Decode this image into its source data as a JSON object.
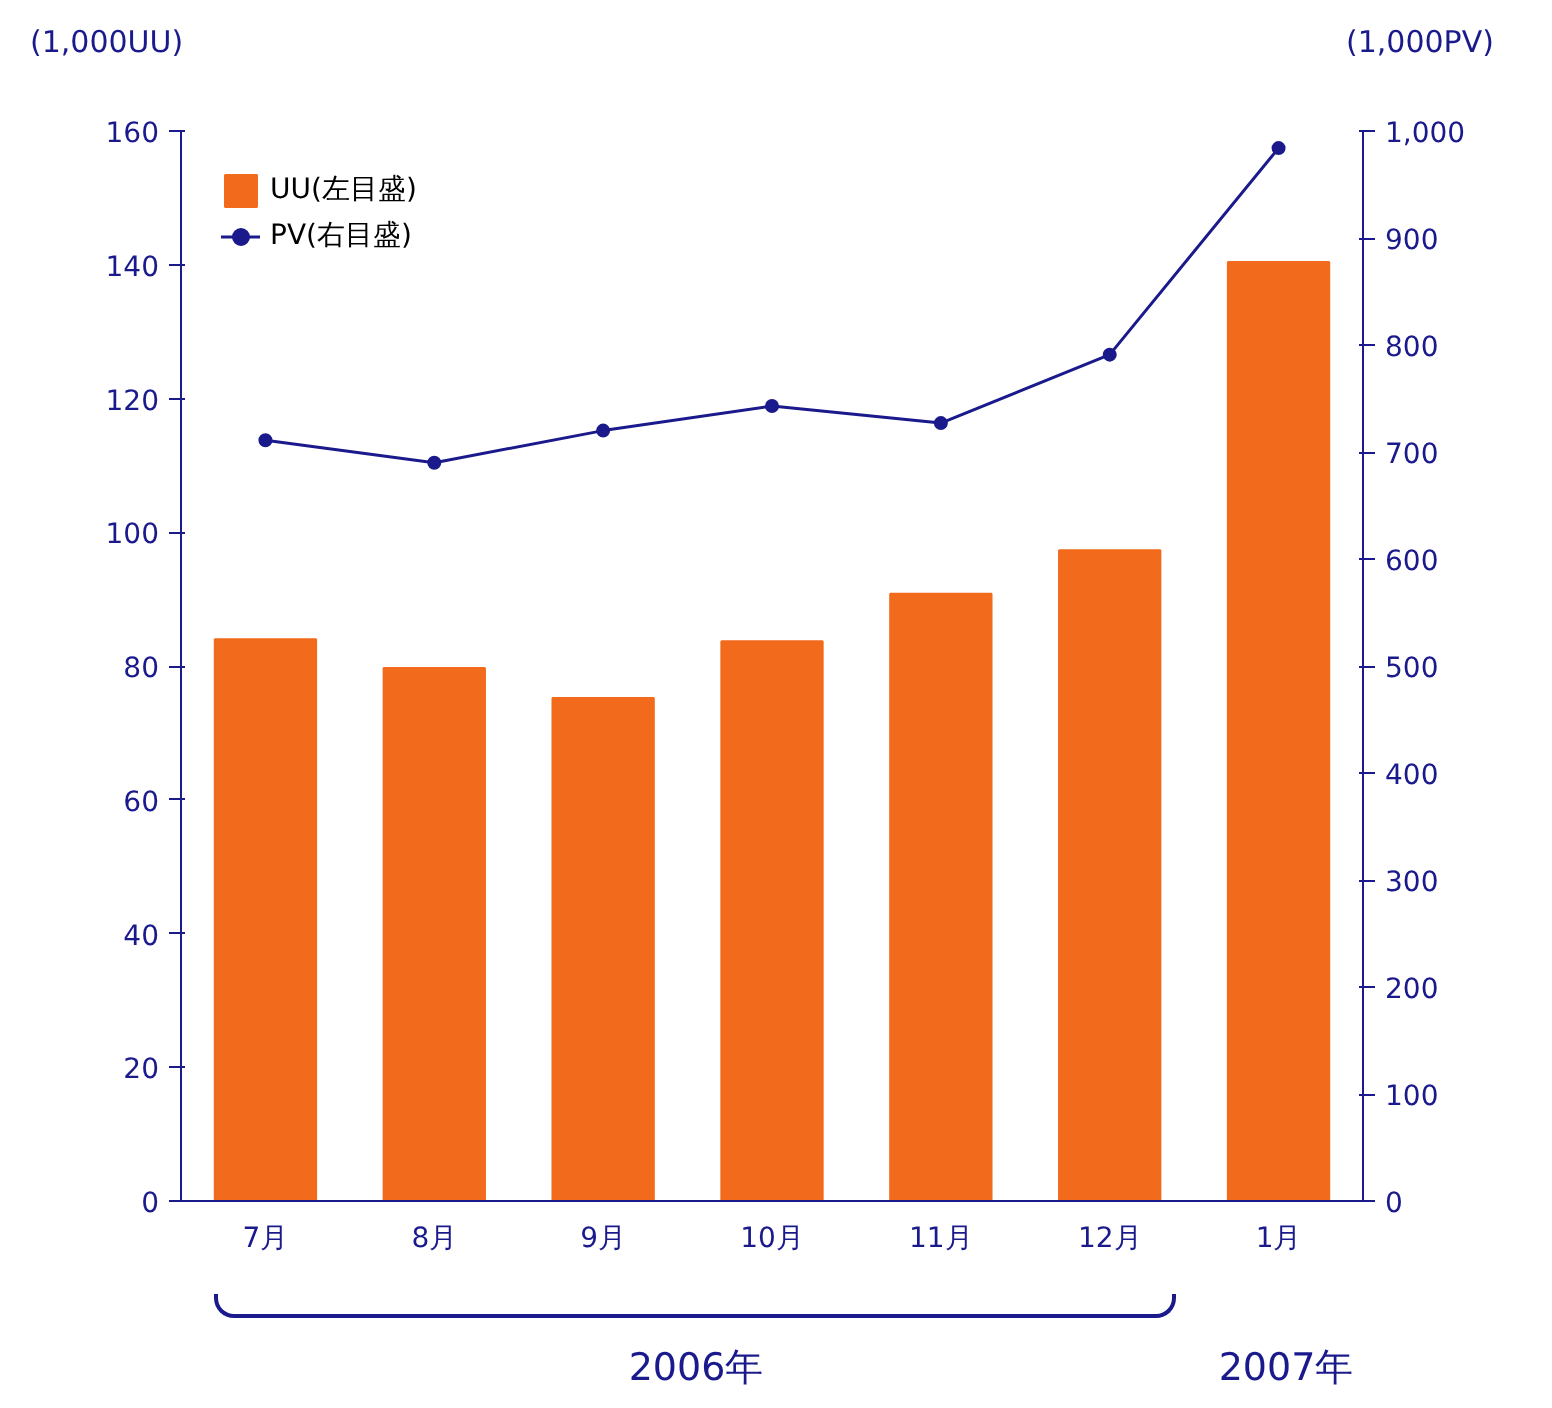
{
  "chart_data": {
    "type": "bar",
    "categories": [
      "7月",
      "8月",
      "9月",
      "10月",
      "11月",
      "12月",
      "1月"
    ],
    "series": [
      {
        "name": "UU(左目盛)",
        "color": "#f26a1b",
        "values": [
          84,
          79.7,
          75.2,
          83.7,
          90.8,
          97.3,
          140.4
        ]
      },
      {
        "name": "PV(右目盛)",
        "type": "line",
        "axis": "y2",
        "color": "#1a1a8c",
        "marker": "circle",
        "values": [
          711,
          690,
          720,
          743,
          727,
          791,
          984
        ]
      }
    ],
    "ylabel": "(1,000UU)",
    "y2label": "(1,000PV)",
    "ylim": [
      0,
      160
    ],
    "yticks": [
      0,
      20,
      40,
      60,
      80,
      100,
      120,
      140,
      160
    ],
    "y2lim": [
      0,
      1000
    ],
    "y2ticks": [
      0,
      100,
      200,
      300,
      400,
      500,
      600,
      700,
      800,
      900,
      {
        "value": 1000,
        "label": "1,000"
      }
    ],
    "annotations": [
      "2006年",
      "2007年"
    ],
    "legend": "top left",
    "grid": false
  }
}
